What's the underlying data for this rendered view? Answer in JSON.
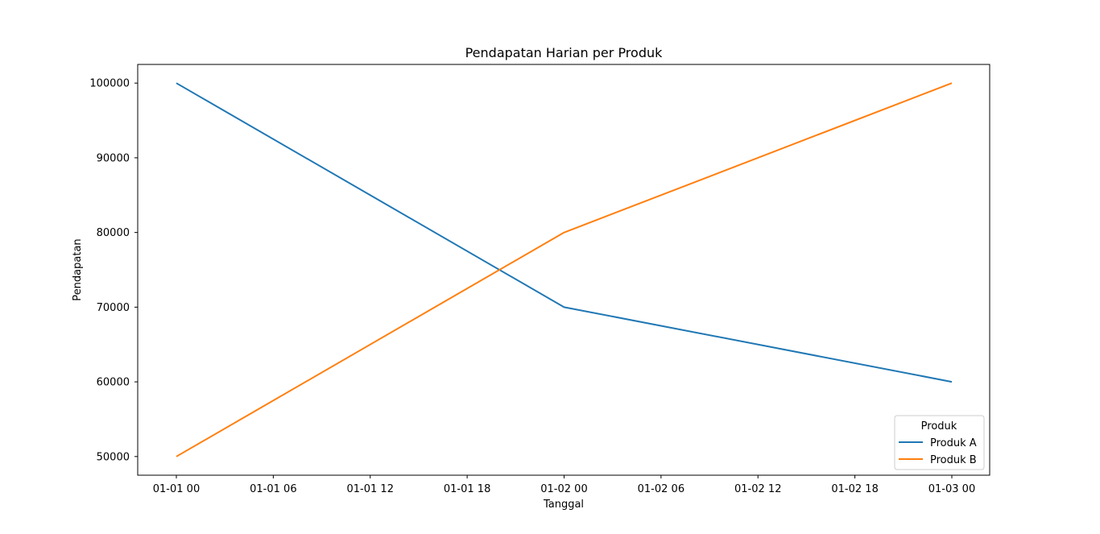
{
  "chart_data": {
    "type": "line",
    "title": "Pendapatan Harian per Produk",
    "xlabel": "Tanggal",
    "ylabel": "Pendapatan",
    "x": [
      "2023-01-01 00:00",
      "2023-01-02 00:00",
      "2023-01-03 00:00"
    ],
    "x_ticks": [
      "01-01 00",
      "01-01 06",
      "01-01 12",
      "01-01 18",
      "01-02 00",
      "01-02 06",
      "01-02 12",
      "01-02 18",
      "01-03 00"
    ],
    "y_ticks": [
      "50000",
      "60000",
      "70000",
      "80000",
      "90000",
      "100000"
    ],
    "ylim": [
      47500,
      102500
    ],
    "grid": false,
    "legend": {
      "title": "Produk",
      "placement": "lower-right"
    },
    "series": [
      {
        "name": "Produk A",
        "color": "#1f77b4",
        "values": [
          100000,
          70000,
          60000
        ]
      },
      {
        "name": "Produk B",
        "color": "#ff7f0e",
        "values": [
          50000,
          80000,
          100000
        ]
      }
    ]
  }
}
